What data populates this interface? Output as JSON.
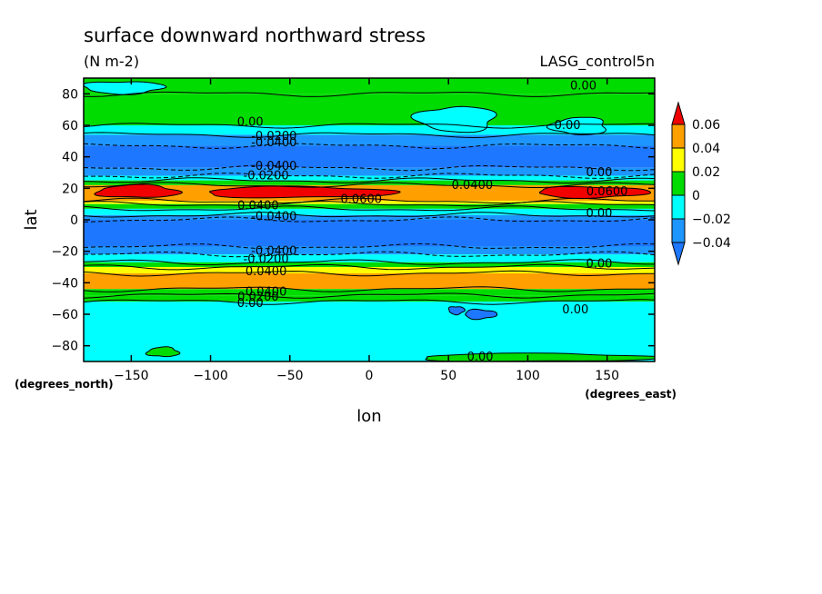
{
  "chart_data": {
    "type": "heatmap",
    "title": "surface downward northward stress",
    "subtitle": "(N m-2)",
    "run_label": "LASG_control5n",
    "xlabel": "lon",
    "ylabel": "lat",
    "x_unit": "(degrees_east)",
    "y_unit": "(degrees_north)",
    "xlim": [
      -180,
      180
    ],
    "ylim": [
      -90,
      90
    ],
    "x_ticks": [
      -150,
      -100,
      -50,
      0,
      50,
      100,
      150
    ],
    "y_ticks": [
      -80,
      -60,
      -40,
      -20,
      0,
      20,
      40,
      60,
      80
    ],
    "x_tick_labels": [
      "−150",
      "−100",
      "−50",
      "0",
      "50",
      "100",
      "150"
    ],
    "y_tick_labels": [
      "−80",
      "−60",
      "−40",
      "−20",
      "0",
      "20",
      "40",
      "60",
      "80"
    ],
    "colorbar": {
      "levels": [
        -0.04,
        -0.02,
        0,
        0.02,
        0.04,
        0.06
      ],
      "labels": [
        "−0.04",
        "−0.02",
        "0",
        "0.02",
        "0.04",
        "0.06"
      ],
      "colors": [
        "#1e78ff",
        "#1e96ff",
        "#00ffff",
        "#00dc00",
        "#ffff00",
        "#ffa000",
        "#f00000"
      ]
    },
    "zonal_bands": [
      {
        "lat": [
          80,
          90
        ],
        "class": 3
      },
      {
        "lat": [
          60,
          80
        ],
        "class": 3
      },
      {
        "lat": [
          54,
          60
        ],
        "class": 2
      },
      {
        "lat": [
          47,
          54
        ],
        "class": 1
      },
      {
        "lat": [
          33,
          47
        ],
        "class": 0
      },
      {
        "lat": [
          28,
          33
        ],
        "class": 1
      },
      {
        "lat": [
          25,
          28
        ],
        "class": 2
      },
      {
        "lat": [
          22,
          25
        ],
        "class": 3
      },
      {
        "lat": [
          12,
          22
        ],
        "class": 5
      },
      {
        "lat": [
          10,
          12
        ],
        "class": 4
      },
      {
        "lat": [
          7,
          10
        ],
        "class": 3
      },
      {
        "lat": [
          3,
          7
        ],
        "class": 2
      },
      {
        "lat": [
          0,
          3
        ],
        "class": 1
      },
      {
        "lat": [
          -17,
          0
        ],
        "class": 0
      },
      {
        "lat": [
          -22,
          -17
        ],
        "class": 1
      },
      {
        "lat": [
          -27,
          -22
        ],
        "class": 2
      },
      {
        "lat": [
          -30,
          -27
        ],
        "class": 3
      },
      {
        "lat": [
          -34,
          -30
        ],
        "class": 4
      },
      {
        "lat": [
          -44,
          -34
        ],
        "class": 5
      },
      {
        "lat": [
          -48,
          -44
        ],
        "class": 3
      },
      {
        "lat": [
          -52,
          -48
        ],
        "class": 3
      },
      {
        "lat": [
          -90,
          -52
        ],
        "class": 2
      }
    ],
    "features": [
      {
        "lon": [
          -172,
          -120
        ],
        "lat": [
          14,
          22
        ],
        "class": 6
      },
      {
        "lon": [
          -105,
          15
        ],
        "lat": [
          14,
          21
        ],
        "class": 6
      },
      {
        "lon": [
          105,
          175
        ],
        "lat": [
          14,
          21
        ],
        "class": 6
      },
      {
        "lon": [
          -180,
          -130
        ],
        "lat": [
          80,
          88
        ],
        "class": 2
      },
      {
        "lon": [
          30,
          80
        ],
        "lat": [
          56,
          72
        ],
        "class": 2
      },
      {
        "lon": [
          115,
          150
        ],
        "lat": [
          54,
          65
        ],
        "class": 2
      },
      {
        "lon": [
          -140,
          -120
        ],
        "lat": [
          -87,
          -81
        ],
        "class": 3
      },
      {
        "lon": [
          30,
          180
        ],
        "lat": [
          -90,
          -85
        ],
        "class": 3
      },
      {
        "lon": [
          60,
          80
        ],
        "lat": [
          -63,
          -57
        ],
        "class": 0
      },
      {
        "lon": [
          50,
          60
        ],
        "lat": [
          -60,
          -55
        ],
        "class": 0
      }
    ],
    "contour_labels": [
      {
        "text": "0.00",
        "lon": 135,
        "lat": 85
      },
      {
        "text": "0.00",
        "lon": -75,
        "lat": 62
      },
      {
        "text": "0.00",
        "lon": 125,
        "lat": 60
      },
      {
        "text": "-0.0200",
        "lon": -60,
        "lat": 53
      },
      {
        "text": "-0.0400",
        "lon": -60,
        "lat": 49
      },
      {
        "text": "-0.0400",
        "lon": -60,
        "lat": 34
      },
      {
        "text": "-0.0200",
        "lon": -65,
        "lat": 28
      },
      {
        "text": "0.00",
        "lon": 145,
        "lat": 30
      },
      {
        "text": "0.0400",
        "lon": 65,
        "lat": 22
      },
      {
        "text": "0.0600",
        "lon": -5,
        "lat": 13
      },
      {
        "text": "0.0600",
        "lon": 150,
        "lat": 18
      },
      {
        "text": "0.0400",
        "lon": -70,
        "lat": 9
      },
      {
        "text": "-0.0400",
        "lon": -60,
        "lat": 2
      },
      {
        "text": "0.00",
        "lon": 145,
        "lat": 4
      },
      {
        "text": "-0.0400",
        "lon": -60,
        "lat": -20
      },
      {
        "text": "-0.0200",
        "lon": -65,
        "lat": -25
      },
      {
        "text": "0.00",
        "lon": 145,
        "lat": -28
      },
      {
        "text": "0.0400",
        "lon": -65,
        "lat": -33
      },
      {
        "text": "0.0400",
        "lon": -65,
        "lat": -46
      },
      {
        "text": "0.0200",
        "lon": -70,
        "lat": -49
      },
      {
        "text": "0.00",
        "lon": -75,
        "lat": -53
      },
      {
        "text": "0.00",
        "lon": 130,
        "lat": -57
      },
      {
        "text": "0.00",
        "lon": 70,
        "lat": -87
      }
    ],
    "grid": false,
    "legend": "right"
  }
}
